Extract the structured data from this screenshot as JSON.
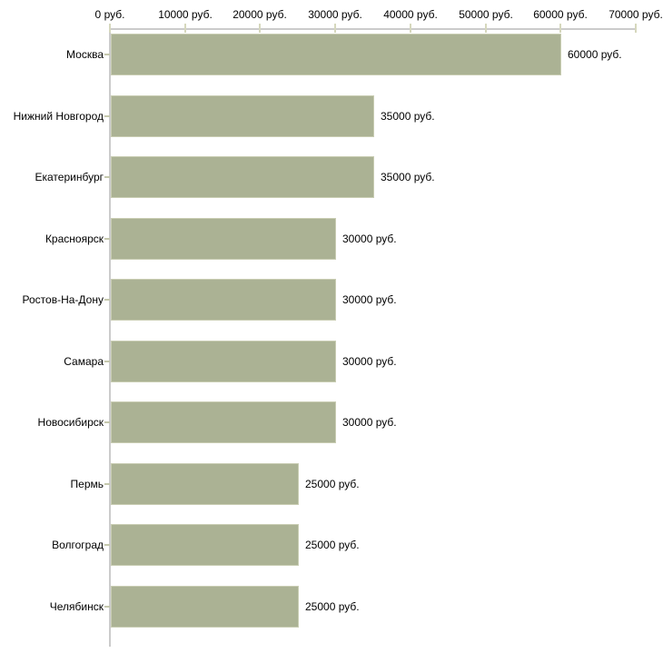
{
  "chart_data": {
    "type": "bar",
    "orientation": "horizontal",
    "categories": [
      "Москва",
      "Нижний Новгород",
      "Екатеринбург",
      "Красноярск",
      "Ростов-На-Дону",
      "Самара",
      "Новосибирск",
      "Пермь",
      "Волгоград",
      "Челябинск"
    ],
    "values": [
      60000,
      35000,
      35000,
      30000,
      30000,
      30000,
      30000,
      25000,
      25000,
      25000
    ],
    "value_labels": [
      "60000 руб.",
      "35000 руб.",
      "35000 руб.",
      "30000 руб.",
      "30000 руб.",
      "30000 руб.",
      "30000 руб.",
      "25000 руб.",
      "25000 руб.",
      "25000 руб."
    ],
    "x_axis": {
      "position": "top",
      "tick_values": [
        0,
        10000,
        20000,
        30000,
        40000,
        50000,
        60000,
        70000
      ],
      "tick_labels": [
        "0 руб.",
        "10000 руб.",
        "20000 руб.",
        "30000 руб.",
        "40000 руб.",
        "50000 руб.",
        "60000 руб.",
        "70000 руб."
      ],
      "xlim": [
        0,
        70000
      ]
    },
    "grid": false,
    "legend": false,
    "colors": {
      "bar_fill": "#abb294",
      "bar_border": "#c9cdb3",
      "axis_line": "#cbcbcb",
      "axis_tick": "#d6d8bd",
      "category_tick": "#c5c8ad",
      "text": "#000000",
      "background": "#ffffff"
    }
  }
}
